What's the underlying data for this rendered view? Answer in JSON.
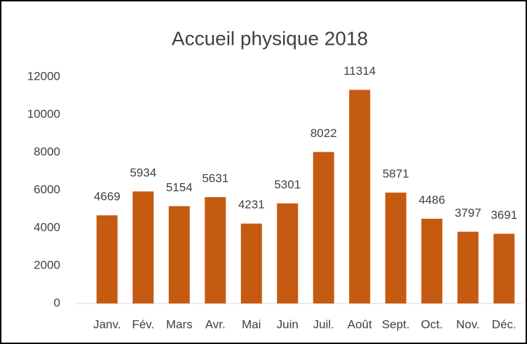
{
  "chart_data": {
    "type": "bar",
    "title": "Accueil physique 2018",
    "categories": [
      "Janv.",
      "Fév.",
      "Mars",
      "Avr.",
      "Mai",
      "Juin",
      "Juil.",
      "Août",
      "Sept.",
      "Oct.",
      "Nov.",
      "Déc."
    ],
    "values": [
      4669,
      5934,
      5154,
      5631,
      4231,
      5301,
      8022,
      11314,
      5871,
      4486,
      3797,
      3691
    ],
    "color": "#c55a11",
    "ylim": [
      0,
      12000
    ],
    "yticks": [
      0,
      2000,
      4000,
      6000,
      8000,
      10000,
      12000
    ],
    "grid": false
  }
}
